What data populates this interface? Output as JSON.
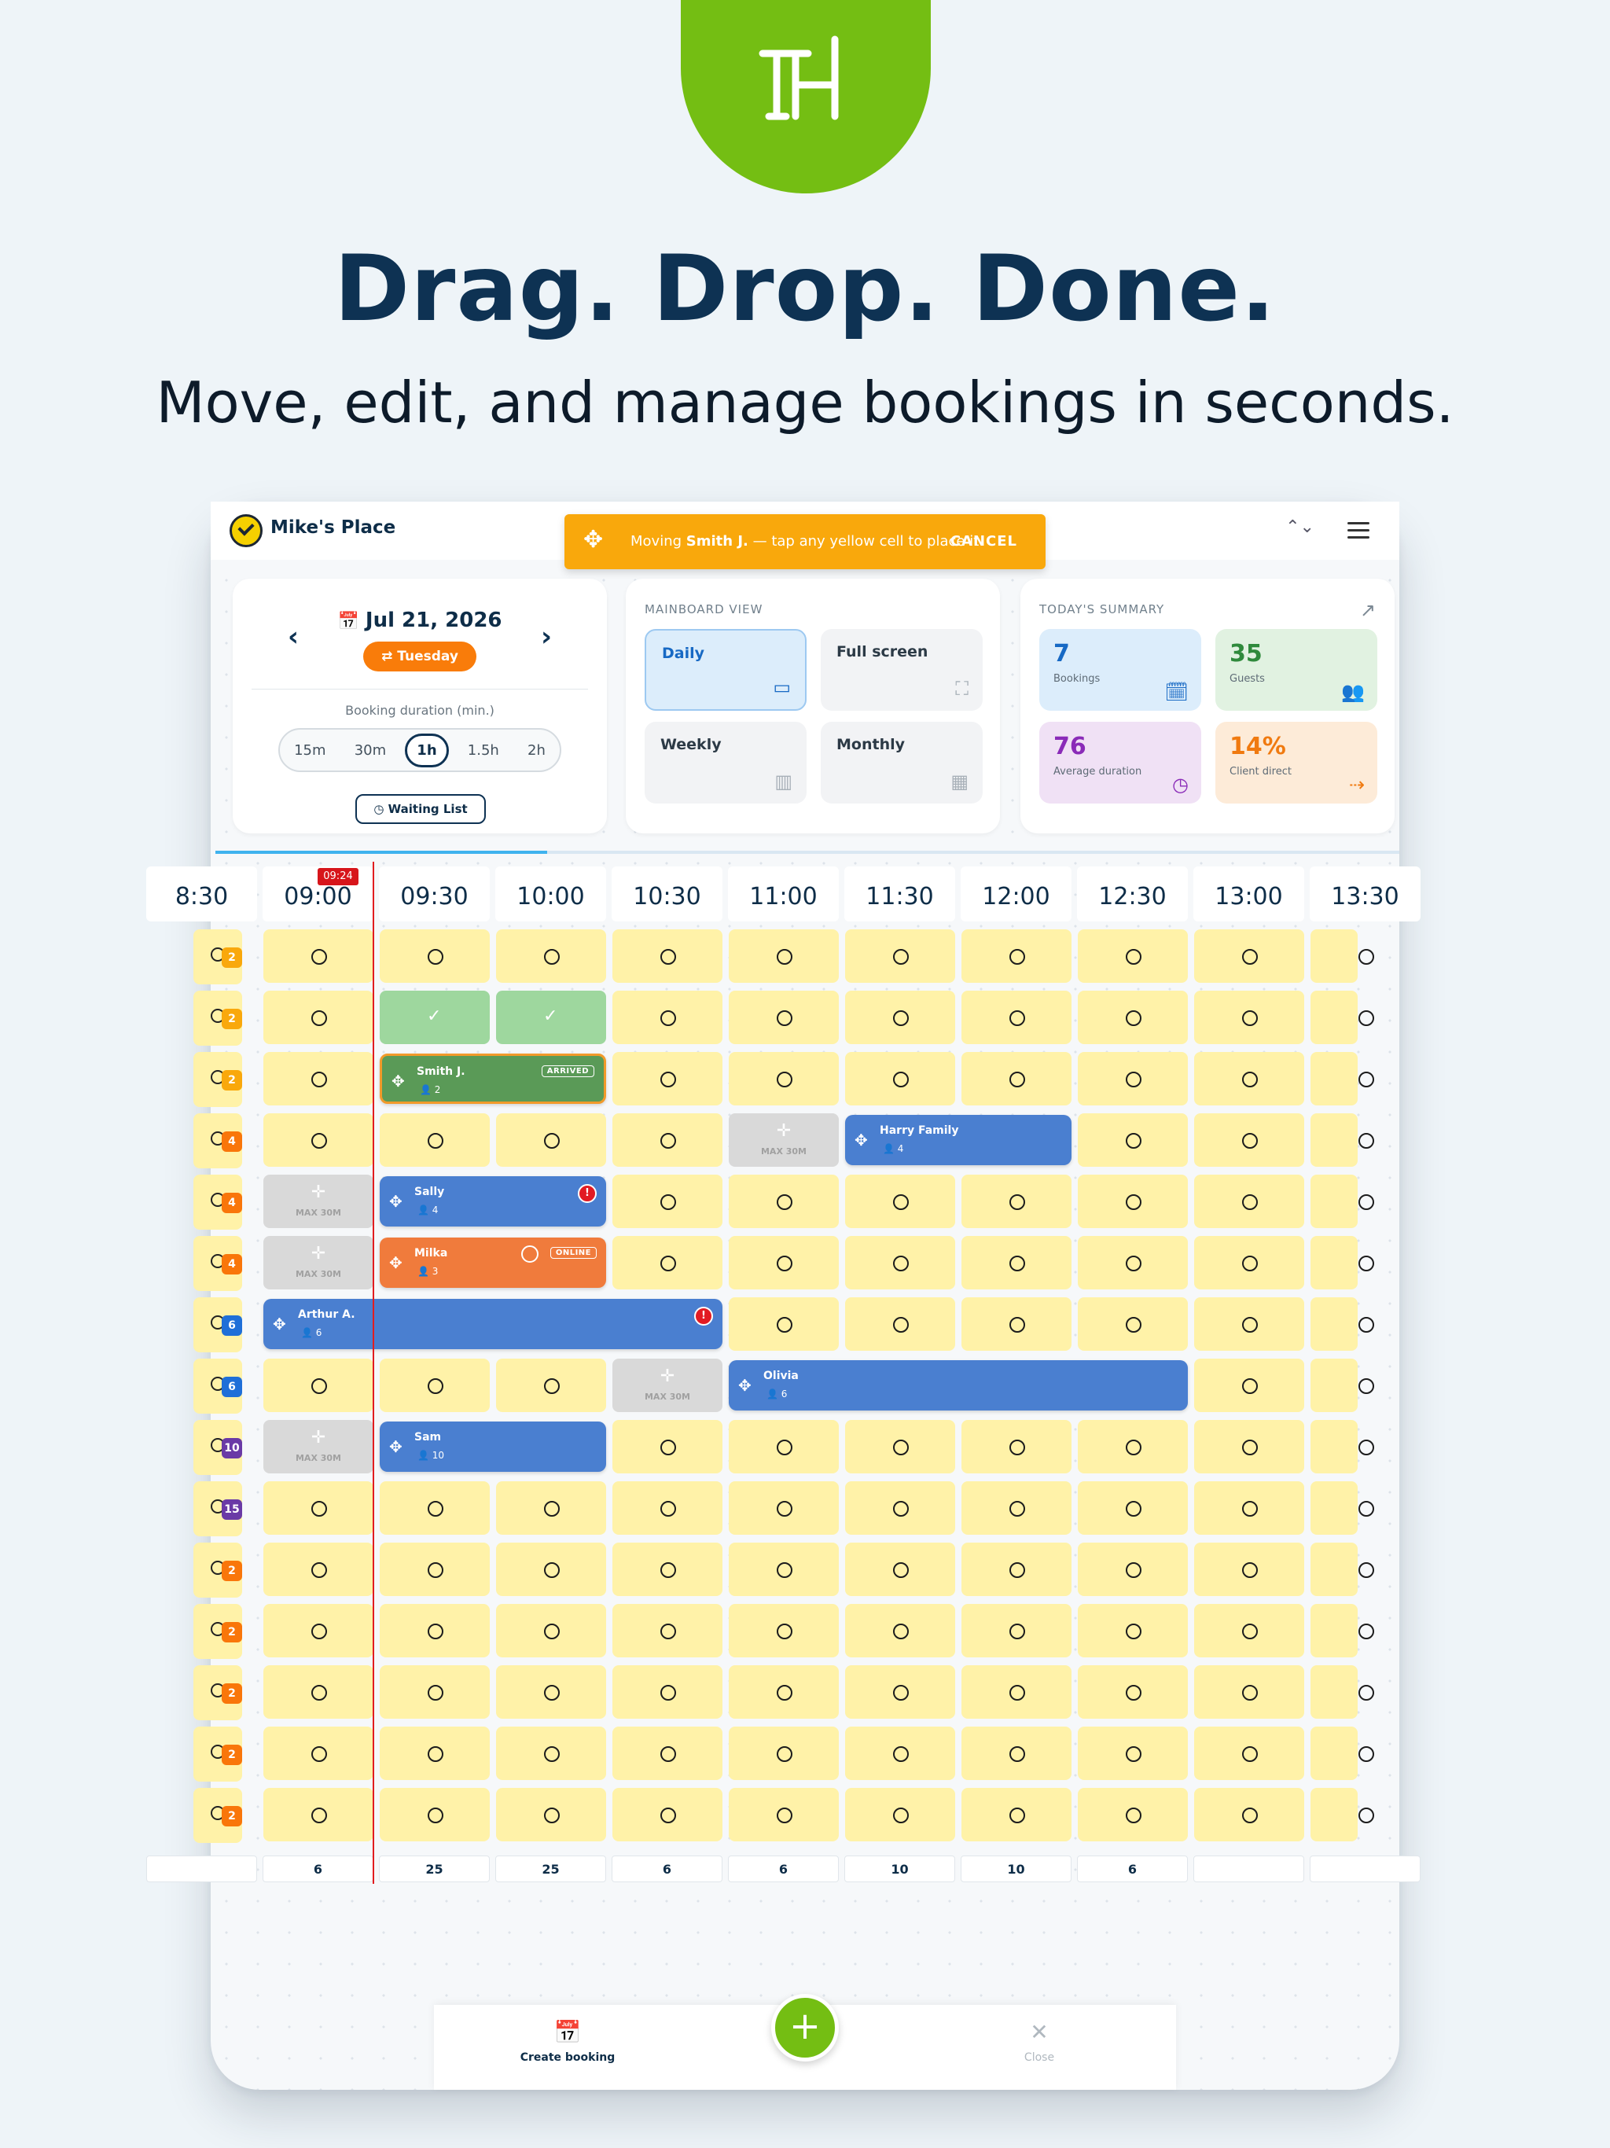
{
  "marketing": {
    "headline": "Drag. Drop. Done.",
    "subhead": "Move, edit, and manage bookings in seconds."
  },
  "app": {
    "name": "Mike's Place",
    "toast": {
      "message_prefix": "Moving",
      "guest": "Smith J.",
      "message_suffix": " — tap any yellow cell to place it",
      "cancel": "CANCEL"
    }
  },
  "date_panel": {
    "date": "Jul 21, 2026",
    "weekday": "Tuesday",
    "duration_label": "Booking duration (min.)",
    "durations": [
      "15m",
      "30m",
      "1h",
      "1.5h",
      "2h"
    ],
    "selected_duration": "1h",
    "waiting_list": "Waiting List"
  },
  "view_panel": {
    "title": "MAINBOARD VIEW",
    "views": [
      {
        "label": "Daily",
        "icon": "daily-view-icon",
        "active": true
      },
      {
        "label": "Full screen",
        "icon": "fullscreen-icon",
        "active": false
      },
      {
        "label": "Weekly",
        "icon": "weekly-view-icon",
        "active": false
      },
      {
        "label": "Monthly",
        "icon": "monthly-view-icon",
        "active": false
      }
    ]
  },
  "summary": {
    "title": "TODAY'S SUMMARY",
    "tiles": [
      {
        "value": "7",
        "label": "Bookings",
        "color": "#1769c4",
        "bg": "#dcedfb",
        "icon": "calendar-check-icon"
      },
      {
        "value": "35",
        "label": "Guests",
        "color": "#2f8a3c",
        "bg": "#e1f2e1",
        "icon": "guests-icon"
      },
      {
        "value": "76",
        "label": "Average duration",
        "color": "#8a2bb8",
        "bg": "#f0e1f5",
        "icon": "clock-icon"
      },
      {
        "value": "14%",
        "label": "Client direct",
        "color": "#f07a10",
        "bg": "#fdebd8",
        "icon": "client-direct-icon"
      }
    ]
  },
  "progress_fraction": 0.28,
  "timeline": {
    "now": "09:24",
    "times": [
      "8:30",
      "09:00",
      "09:30",
      "10:00",
      "10:30",
      "11:00",
      "11:30",
      "12:00",
      "12:30",
      "13:00",
      "13:30"
    ],
    "tables": [
      {
        "size": "2",
        "color": "#f9a80c"
      },
      {
        "size": "2",
        "color": "#f9a80c"
      },
      {
        "size": "2",
        "color": "#f9a80c"
      },
      {
        "size": "4",
        "color": "#f9760a"
      },
      {
        "size": "4",
        "color": "#f9760a"
      },
      {
        "size": "4",
        "color": "#f9760a"
      },
      {
        "size": "6",
        "color": "#1f6fd8"
      },
      {
        "size": "6",
        "color": "#1f6fd8"
      },
      {
        "size": "10",
        "color": "#6a3aa6"
      },
      {
        "size": "15",
        "color": "#6a3aa6"
      },
      {
        "size": "2",
        "color": "#f9760a"
      },
      {
        "size": "2",
        "color": "#f9760a"
      },
      {
        "size": "2",
        "color": "#f9760a"
      },
      {
        "size": "2",
        "color": "#f9760a"
      },
      {
        "size": "2",
        "color": "#f9760a"
      }
    ],
    "max_label": "MAX 30M",
    "bookings": [
      {
        "row": 2,
        "start": 1,
        "span": 2,
        "name": "Smith J.",
        "guests": "2",
        "style": "green",
        "tag": "ARRIVED"
      },
      {
        "row": 3,
        "start": 5,
        "span": 2,
        "name": "Harry Family",
        "guests": "4",
        "style": "blue"
      },
      {
        "row": 4,
        "start": 1,
        "span": 2,
        "name": "Sally",
        "guests": "4",
        "style": "blue",
        "warn": true
      },
      {
        "row": 5,
        "start": 1,
        "span": 2,
        "name": "Milka",
        "guests": "3",
        "style": "orange",
        "tag": "ONLINE"
      },
      {
        "row": 6,
        "start": 0,
        "span": 4,
        "name": "Arthur A.",
        "guests": "6",
        "style": "blue",
        "warn": true
      },
      {
        "row": 7,
        "start": 4,
        "span": 4,
        "name": "Olivia",
        "guests": "6",
        "style": "blue"
      },
      {
        "row": 8,
        "start": 1,
        "span": 2,
        "name": "Sam",
        "guests": "10",
        "style": "blue"
      }
    ],
    "full_cells": [
      [
        1,
        1
      ],
      [
        1,
        2
      ]
    ],
    "max_cells": [
      [
        3,
        4
      ],
      [
        4,
        0
      ],
      [
        5,
        0
      ],
      [
        7,
        3
      ],
      [
        8,
        0
      ]
    ],
    "totals": [
      "",
      "6",
      "25",
      "25",
      "6",
      "6",
      "10",
      "10",
      "6",
      "",
      ""
    ]
  },
  "bottom_bar": {
    "create": "Create booking",
    "close": "Close"
  }
}
